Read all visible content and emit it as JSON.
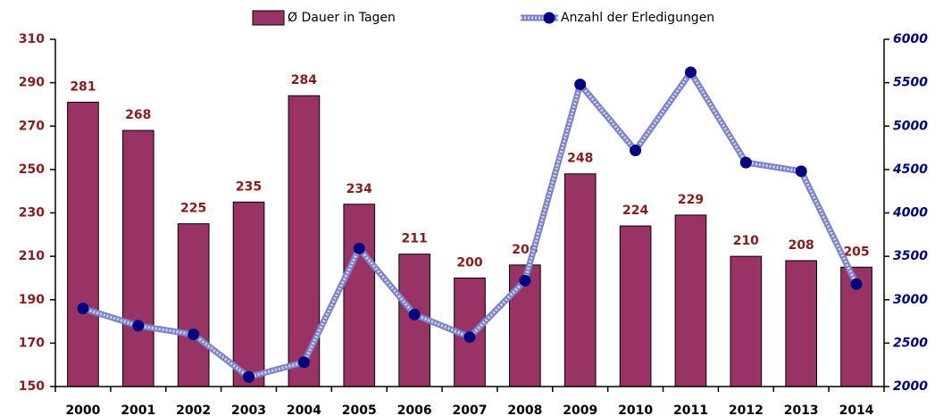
{
  "chart_data": {
    "type": "bar_line",
    "categories": [
      "2000",
      "2001",
      "2002",
      "2003",
      "2004",
      "2005",
      "2006",
      "2007",
      "2008",
      "2009",
      "2010",
      "2011",
      "2012",
      "2013",
      "2014"
    ],
    "series": [
      {
        "name": "Ø Dauer in Tagen",
        "type": "bar",
        "color": "#993366",
        "values": [
          281,
          268,
          225,
          235,
          284,
          234,
          211,
          200,
          206,
          248,
          224,
          229,
          210,
          208,
          205
        ]
      },
      {
        "name": "Anzahl der Erledigungen",
        "type": "line",
        "axis": "y2",
        "color": "#000080",
        "values": [
          2900,
          2700,
          2600,
          2110,
          2280,
          3590,
          2830,
          2570,
          3220,
          5480,
          4720,
          5620,
          4580,
          4480,
          3180
        ]
      }
    ],
    "ylim": [
      150,
      310
    ],
    "yticks": [
      150,
      170,
      190,
      210,
      230,
      250,
      270,
      290,
      310
    ],
    "y2lim": [
      2000,
      6000
    ],
    "y2ticks": [
      2000,
      2500,
      3000,
      3500,
      4000,
      4500,
      5000,
      5500,
      6000
    ],
    "data_labels": true,
    "legend": "top",
    "grid": false
  }
}
